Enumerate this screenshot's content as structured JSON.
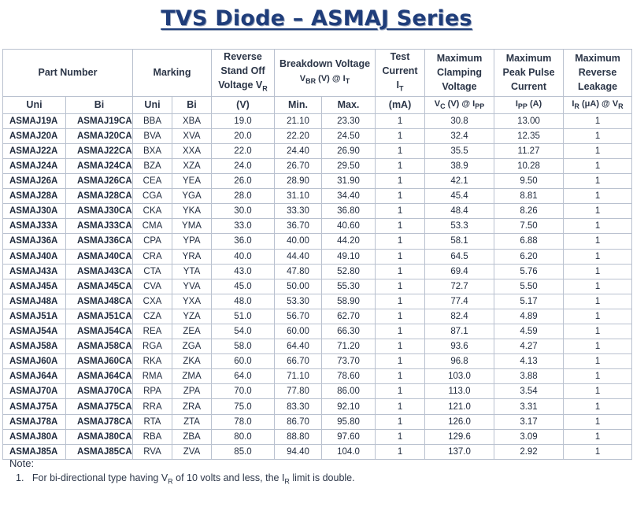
{
  "title": "TVS Diode – ASMAJ Series",
  "headers": {
    "part_number": "Part Number",
    "marking": "Marking",
    "reverse_standoff": [
      "Reverse",
      "Stand Off",
      "Voltage V",
      "R"
    ],
    "breakdown": [
      "Breakdown Voltage",
      "V",
      "BR",
      " (V) @ I",
      "T"
    ],
    "test_current": [
      "Test",
      "Current",
      "I",
      "T"
    ],
    "clamping": [
      "Maximum",
      "Clamping",
      "Voltage"
    ],
    "peak_pulse": [
      "Maximum",
      "Peak Pulse",
      "Current"
    ],
    "reverse_leakage": [
      "Maximum",
      "Reverse",
      "Leakage"
    ],
    "sub": {
      "uni": "Uni",
      "bi": "Bi",
      "m_uni": "Uni",
      "m_bi": "Bi",
      "vr_unit": "(V)",
      "min": "Min.",
      "max": "Max.",
      "it_unit": "(mA)",
      "vc_unit": [
        "V",
        "C",
        " (V) @ I",
        "PP"
      ],
      "ipp_unit": [
        "I",
        "PP",
        " (A)"
      ],
      "ir_unit": [
        "I",
        "R",
        " (μA) @ V",
        "R"
      ]
    }
  },
  "rows": [
    [
      "ASMAJ19A",
      "ASMAJ19CA",
      "BBA",
      "XBA",
      "19.0",
      "21.10",
      "23.30",
      "1",
      "30.8",
      "13.00",
      "1"
    ],
    [
      "ASMAJ20A",
      "ASMAJ20CA",
      "BVA",
      "XVA",
      "20.0",
      "22.20",
      "24.50",
      "1",
      "32.4",
      "12.35",
      "1"
    ],
    [
      "ASMAJ22A",
      "ASMAJ22CA",
      "BXA",
      "XXA",
      "22.0",
      "24.40",
      "26.90",
      "1",
      "35.5",
      "11.27",
      "1"
    ],
    [
      "ASMAJ24A",
      "ASMAJ24CA",
      "BZA",
      "XZA",
      "24.0",
      "26.70",
      "29.50",
      "1",
      "38.9",
      "10.28",
      "1"
    ],
    [
      "ASMAJ26A",
      "ASMAJ26CA",
      "CEA",
      "YEA",
      "26.0",
      "28.90",
      "31.90",
      "1",
      "42.1",
      "9.50",
      "1"
    ],
    [
      "ASMAJ28A",
      "ASMAJ28CA",
      "CGA",
      "YGA",
      "28.0",
      "31.10",
      "34.40",
      "1",
      "45.4",
      "8.81",
      "1"
    ],
    [
      "ASMAJ30A",
      "ASMAJ30CA",
      "CKA",
      "YKA",
      "30.0",
      "33.30",
      "36.80",
      "1",
      "48.4",
      "8.26",
      "1"
    ],
    [
      "ASMAJ33A",
      "ASMAJ33CA",
      "CMA",
      "YMA",
      "33.0",
      "36.70",
      "40.60",
      "1",
      "53.3",
      "7.50",
      "1"
    ],
    [
      "ASMAJ36A",
      "ASMAJ36CA",
      "CPA",
      "YPA",
      "36.0",
      "40.00",
      "44.20",
      "1",
      "58.1",
      "6.88",
      "1"
    ],
    [
      "ASMAJ40A",
      "ASMAJ40CA",
      "CRA",
      "YRA",
      "40.0",
      "44.40",
      "49.10",
      "1",
      "64.5",
      "6.20",
      "1"
    ],
    [
      "ASMAJ43A",
      "ASMAJ43CA",
      "CTA",
      "YTA",
      "43.0",
      "47.80",
      "52.80",
      "1",
      "69.4",
      "5.76",
      "1"
    ],
    [
      "ASMAJ45A",
      "ASMAJ45CA",
      "CVA",
      "YVA",
      "45.0",
      "50.00",
      "55.30",
      "1",
      "72.7",
      "5.50",
      "1"
    ],
    [
      "ASMAJ48A",
      "ASMAJ48CA",
      "CXA",
      "YXA",
      "48.0",
      "53.30",
      "58.90",
      "1",
      "77.4",
      "5.17",
      "1"
    ],
    [
      "ASMAJ51A",
      "ASMAJ51CA",
      "CZA",
      "YZA",
      "51.0",
      "56.70",
      "62.70",
      "1",
      "82.4",
      "4.89",
      "1"
    ],
    [
      "ASMAJ54A",
      "ASMAJ54CA",
      "REA",
      "ZEA",
      "54.0",
      "60.00",
      "66.30",
      "1",
      "87.1",
      "4.59",
      "1"
    ],
    [
      "ASMAJ58A",
      "ASMAJ58CA",
      "RGA",
      "ZGA",
      "58.0",
      "64.40",
      "71.20",
      "1",
      "93.6",
      "4.27",
      "1"
    ],
    [
      "ASMAJ60A",
      "ASMAJ60CA",
      "RKA",
      "ZKA",
      "60.0",
      "66.70",
      "73.70",
      "1",
      "96.8",
      "4.13",
      "1"
    ],
    [
      "ASMAJ64A",
      "ASMAJ64CA",
      "RMA",
      "ZMA",
      "64.0",
      "71.10",
      "78.60",
      "1",
      "103.0",
      "3.88",
      "1"
    ],
    [
      "ASMAJ70A",
      "ASMAJ70CA",
      "RPA",
      "ZPA",
      "70.0",
      "77.80",
      "86.00",
      "1",
      "113.0",
      "3.54",
      "1"
    ],
    [
      "ASMAJ75A",
      "ASMAJ75CA",
      "RRA",
      "ZRA",
      "75.0",
      "83.30",
      "92.10",
      "1",
      "121.0",
      "3.31",
      "1"
    ],
    [
      "ASMAJ78A",
      "ASMAJ78CA",
      "RTA",
      "ZTA",
      "78.0",
      "86.70",
      "95.80",
      "1",
      "126.0",
      "3.17",
      "1"
    ],
    [
      "ASMAJ80A",
      "ASMAJ80CA",
      "RBA",
      "ZBA",
      "80.0",
      "88.80",
      "97.60",
      "1",
      "129.6",
      "3.09",
      "1"
    ],
    [
      "ASMAJ85A",
      "ASMAJ85CA",
      "RVA",
      "ZVA",
      "85.0",
      "94.40",
      "104.0",
      "1",
      "137.0",
      "2.92",
      "1"
    ]
  ],
  "note_label": "Note:",
  "note_item": {
    "number": "1.",
    "parts": [
      "For bi-directional type having V",
      "R",
      " of 10 volts and less, the I",
      "R",
      " limit is double."
    ]
  }
}
